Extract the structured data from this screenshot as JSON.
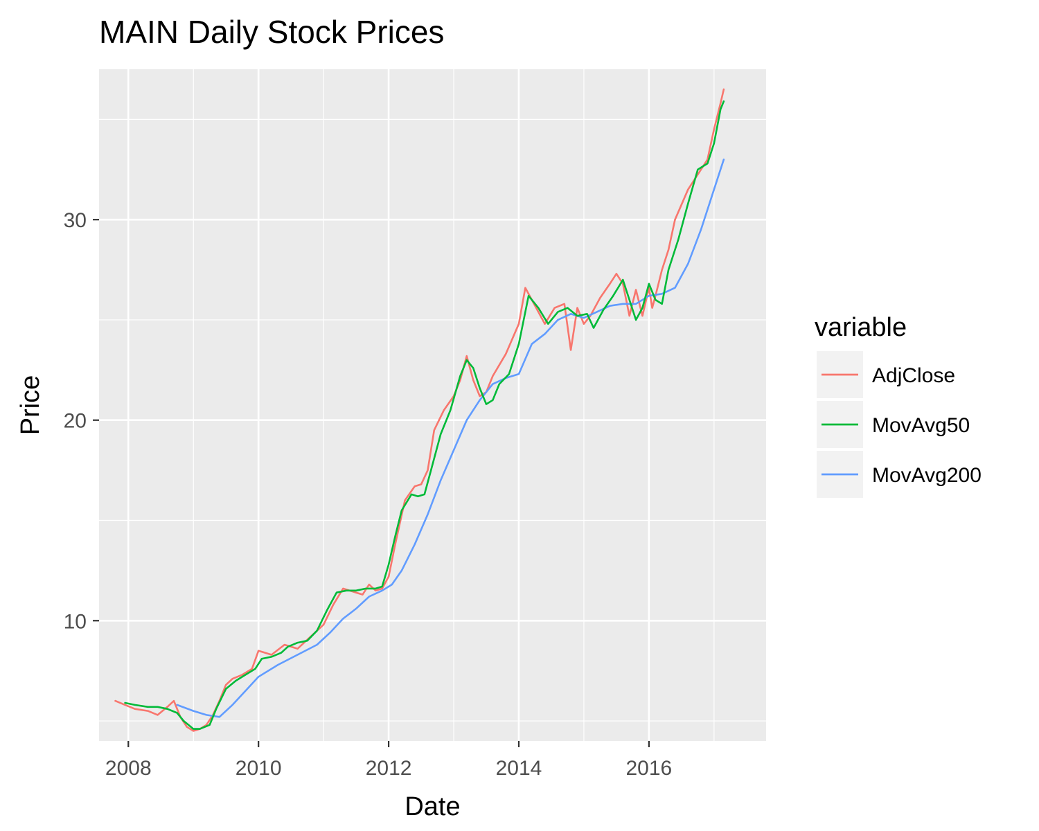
{
  "chart_data": {
    "type": "line",
    "title": "MAIN Daily Stock Prices",
    "xlabel": "Date",
    "ylabel": "Price",
    "xlim": [
      2007.55,
      2017.8
    ],
    "ylim": [
      4.0,
      37.5
    ],
    "x_ticks": [
      2008,
      2010,
      2012,
      2014,
      2016
    ],
    "x_tick_labels": [
      "2008",
      "2010",
      "2012",
      "2014",
      "2016"
    ],
    "x_minor_ticks": [
      2009,
      2011,
      2013,
      2015,
      2017
    ],
    "y_ticks": [
      10,
      20,
      30
    ],
    "y_tick_labels": [
      "10",
      "20",
      "30"
    ],
    "y_minor_ticks": [
      5,
      15,
      25,
      35
    ],
    "grid": true,
    "legend": {
      "title": "variable",
      "position": "right"
    },
    "colors": {
      "panel": "#ebebeb",
      "grid": "#ffffff",
      "AdjClose": "#F8766D",
      "MovAvg50": "#00BA38",
      "MovAvg200": "#619CFF"
    },
    "series": [
      {
        "name": "AdjClose",
        "x": [
          2007.8,
          2007.95,
          2008.1,
          2008.3,
          2008.45,
          2008.6,
          2008.7,
          2008.8,
          2008.9,
          2009.0,
          2009.1,
          2009.2,
          2009.3,
          2009.4,
          2009.5,
          2009.6,
          2009.75,
          2009.9,
          2010.0,
          2010.2,
          2010.4,
          2010.6,
          2010.8,
          2011.0,
          2011.15,
          2011.3,
          2011.5,
          2011.6,
          2011.7,
          2011.8,
          2011.9,
          2012.0,
          2012.1,
          2012.25,
          2012.4,
          2012.5,
          2012.6,
          2012.7,
          2012.85,
          2013.0,
          2013.1,
          2013.2,
          2013.3,
          2013.4,
          2013.5,
          2013.6,
          2013.8,
          2014.0,
          2014.1,
          2014.2,
          2014.3,
          2014.4,
          2014.55,
          2014.7,
          2014.8,
          2014.9,
          2015.0,
          2015.1,
          2015.25,
          2015.4,
          2015.5,
          2015.6,
          2015.7,
          2015.8,
          2015.9,
          2016.0,
          2016.05,
          2016.1,
          2016.2,
          2016.3,
          2016.4,
          2016.6,
          2016.8,
          2016.9,
          2017.0,
          2017.1,
          2017.15
        ],
        "y": [
          6.0,
          5.8,
          5.6,
          5.5,
          5.3,
          5.7,
          6.0,
          5.2,
          4.7,
          4.5,
          4.6,
          4.8,
          5.3,
          6.0,
          6.8,
          7.1,
          7.3,
          7.6,
          8.5,
          8.3,
          8.8,
          8.6,
          9.2,
          9.8,
          10.8,
          11.6,
          11.4,
          11.3,
          11.8,
          11.5,
          11.6,
          12.2,
          13.8,
          16.0,
          16.7,
          16.8,
          17.5,
          19.5,
          20.5,
          21.2,
          22.0,
          23.2,
          22.0,
          21.2,
          21.4,
          22.2,
          23.3,
          24.8,
          26.6,
          26.0,
          25.4,
          24.8,
          25.6,
          25.8,
          23.5,
          25.6,
          24.8,
          25.2,
          26.1,
          26.8,
          27.3,
          26.8,
          25.2,
          26.5,
          25.2,
          26.6,
          25.6,
          26.2,
          27.5,
          28.5,
          30.0,
          31.5,
          32.5,
          33.0,
          34.5,
          35.8,
          36.5
        ]
      },
      {
        "name": "MovAvg50",
        "x": [
          2007.95,
          2008.1,
          2008.3,
          2008.45,
          2008.6,
          2008.75,
          2008.85,
          2009.0,
          2009.1,
          2009.25,
          2009.35,
          2009.5,
          2009.65,
          2009.8,
          2009.95,
          2010.05,
          2010.2,
          2010.35,
          2010.45,
          2010.6,
          2010.75,
          2010.9,
          2011.05,
          2011.2,
          2011.35,
          2011.5,
          2011.65,
          2011.8,
          2011.9,
          2012.0,
          2012.1,
          2012.2,
          2012.35,
          2012.45,
          2012.55,
          2012.65,
          2012.8,
          2012.95,
          2013.1,
          2013.2,
          2013.3,
          2013.4,
          2013.5,
          2013.6,
          2013.7,
          2013.85,
          2014.0,
          2014.15,
          2014.3,
          2014.45,
          2014.6,
          2014.75,
          2014.9,
          2015.05,
          2015.15,
          2015.3,
          2015.45,
          2015.6,
          2015.7,
          2015.8,
          2015.9,
          2016.0,
          2016.1,
          2016.2,
          2016.3,
          2016.45,
          2016.6,
          2016.75,
          2016.9,
          2017.0,
          2017.1,
          2017.15
        ],
        "y": [
          5.9,
          5.8,
          5.7,
          5.7,
          5.6,
          5.4,
          5.0,
          4.6,
          4.6,
          4.8,
          5.6,
          6.6,
          7.0,
          7.3,
          7.6,
          8.1,
          8.2,
          8.4,
          8.7,
          8.9,
          9.0,
          9.5,
          10.5,
          11.4,
          11.5,
          11.5,
          11.6,
          11.6,
          11.7,
          12.8,
          14.2,
          15.5,
          16.3,
          16.2,
          16.3,
          17.5,
          19.3,
          20.5,
          22.2,
          23.0,
          22.6,
          21.6,
          20.8,
          21.0,
          21.8,
          22.3,
          23.8,
          26.2,
          25.6,
          24.8,
          25.4,
          25.6,
          25.2,
          25.3,
          24.6,
          25.5,
          26.2,
          27.0,
          26.0,
          25.0,
          25.6,
          26.8,
          26.0,
          25.8,
          27.5,
          29.0,
          30.8,
          32.5,
          32.8,
          33.8,
          35.5,
          35.9
        ]
      },
      {
        "name": "MovAvg200",
        "x": [
          2008.75,
          2009.0,
          2009.2,
          2009.4,
          2009.6,
          2009.8,
          2010.0,
          2010.3,
          2010.6,
          2010.9,
          2011.1,
          2011.3,
          2011.5,
          2011.7,
          2011.9,
          2012.05,
          2012.2,
          2012.4,
          2012.6,
          2012.8,
          2013.0,
          2013.2,
          2013.4,
          2013.6,
          2013.8,
          2014.0,
          2014.2,
          2014.4,
          2014.6,
          2014.8,
          2015.0,
          2015.2,
          2015.4,
          2015.6,
          2015.8,
          2016.0,
          2016.2,
          2016.4,
          2016.6,
          2016.8,
          2017.0,
          2017.15
        ],
        "y": [
          5.8,
          5.5,
          5.3,
          5.2,
          5.8,
          6.5,
          7.2,
          7.8,
          8.3,
          8.8,
          9.4,
          10.1,
          10.6,
          11.2,
          11.5,
          11.8,
          12.5,
          13.8,
          15.3,
          17.0,
          18.5,
          20.0,
          21.0,
          21.8,
          22.1,
          22.3,
          23.8,
          24.3,
          25.0,
          25.3,
          25.1,
          25.4,
          25.7,
          25.8,
          25.8,
          26.2,
          26.3,
          26.6,
          27.8,
          29.5,
          31.5,
          33.0
        ]
      }
    ]
  }
}
